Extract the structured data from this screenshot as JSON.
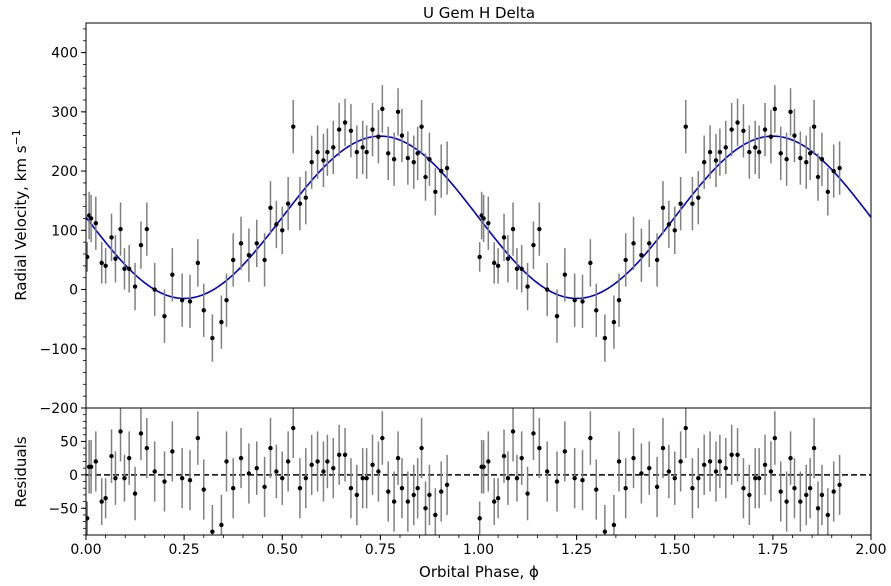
{
  "chart_data": [
    {
      "panel": "main",
      "type": "scatter",
      "title": "U Gem H Delta",
      "xlabel": "",
      "ylabel": "Radial Velocity, km s",
      "ylabel_exponent": "−1",
      "xlim": [
        0.0,
        2.0
      ],
      "ylim": [
        -200,
        450
      ],
      "yticks": [
        -200,
        -100,
        0,
        100,
        200,
        300,
        400
      ],
      "ytick_labels": [
        "−200",
        "−100",
        "0",
        "100",
        "200",
        "300",
        "400"
      ],
      "grid": false,
      "colors": {
        "points": "#000000",
        "errorbars": "#808080",
        "model": "#0000cc"
      },
      "model": {
        "type": "line",
        "description_visible": false,
        "gamma": 122,
        "amplitude": 137,
        "equation_form": "v = gamma - K sin(2*pi*phi)"
      },
      "x": [
        0.003,
        0.008,
        0.013,
        0.025,
        0.04,
        0.05,
        0.065,
        0.075,
        0.088,
        0.098,
        0.11,
        0.125,
        0.14,
        0.155,
        0.175,
        0.2,
        0.22,
        0.245,
        0.265,
        0.285,
        0.3,
        0.322,
        0.345,
        0.358,
        0.375,
        0.395,
        0.415,
        0.435,
        0.455,
        0.47,
        0.485,
        0.5,
        0.515,
        0.528,
        0.545,
        0.56,
        0.575,
        0.59,
        0.605,
        0.615,
        0.63,
        0.645,
        0.66,
        0.675,
        0.69,
        0.705,
        0.715,
        0.73,
        0.745,
        0.755,
        0.77,
        0.785,
        0.795,
        0.805,
        0.82,
        0.835,
        0.845,
        0.855,
        0.865,
        0.875,
        0.89,
        0.905,
        0.92
      ],
      "y": [
        55,
        125,
        120,
        112,
        45,
        40,
        88,
        52,
        102,
        35,
        35,
        5,
        75,
        102,
        0,
        -45,
        25,
        -18,
        -20,
        45,
        -35,
        -82,
        -55,
        -18,
        50,
        78,
        58,
        78,
        50,
        138,
        110,
        100,
        145,
        275,
        145,
        155,
        215,
        232,
        218,
        232,
        240,
        270,
        282,
        268,
        232,
        240,
        232,
        270,
        258,
        305,
        230,
        220,
        300,
        260,
        222,
        215,
        230,
        275,
        190,
        220,
        165,
        200,
        205
      ],
      "errors": [
        25,
        40,
        40,
        45,
        35,
        30,
        40,
        40,
        45,
        35,
        40,
        40,
        40,
        45,
        45,
        45,
        45,
        45,
        45,
        40,
        45,
        40,
        45,
        45,
        45,
        45,
        45,
        40,
        45,
        45,
        40,
        40,
        45,
        45,
        45,
        45,
        45,
        45,
        45,
        40,
        45,
        45,
        40,
        45,
        45,
        45,
        45,
        45,
        45,
        40,
        45,
        45,
        40,
        45,
        45,
        45,
        45,
        45,
        40,
        45,
        40,
        45,
        45
      ],
      "repeat_offset": 1.0
    },
    {
      "panel": "residuals",
      "type": "scatter",
      "title": "",
      "xlabel": "Orbital Phase, ϕ",
      "ylabel": "Residuals",
      "xlim": [
        0.0,
        2.0
      ],
      "ylim": [
        -90,
        100
      ],
      "xticks": [
        0.0,
        0.25,
        0.5,
        0.75,
        1.0,
        1.25,
        1.5,
        1.75,
        2.0
      ],
      "xtick_labels": [
        "0.00",
        "0.25",
        "0.50",
        "0.75",
        "1.00",
        "1.25",
        "1.50",
        "1.75",
        "2.00"
      ],
      "yticks": [
        -50,
        0,
        50
      ],
      "ytick_labels": [
        "−50",
        "0",
        "50"
      ],
      "zero_line": "dashed",
      "colors": {
        "points": "#000000",
        "errorbars": "#808080",
        "zero_line": "#000000"
      },
      "x": [
        0.003,
        0.008,
        0.013,
        0.025,
        0.04,
        0.05,
        0.065,
        0.075,
        0.088,
        0.098,
        0.11,
        0.125,
        0.14,
        0.155,
        0.175,
        0.2,
        0.22,
        0.245,
        0.265,
        0.285,
        0.3,
        0.322,
        0.345,
        0.358,
        0.375,
        0.395,
        0.415,
        0.435,
        0.455,
        0.47,
        0.485,
        0.5,
        0.515,
        0.528,
        0.545,
        0.56,
        0.575,
        0.59,
        0.605,
        0.615,
        0.63,
        0.645,
        0.66,
        0.675,
        0.69,
        0.705,
        0.715,
        0.73,
        0.745,
        0.755,
        0.77,
        0.785,
        0.795,
        0.805,
        0.82,
        0.835,
        0.845,
        0.855,
        0.865,
        0.875,
        0.89,
        0.905,
        0.92
      ],
      "y": [
        -65,
        12,
        12,
        20,
        -40,
        -35,
        28,
        -5,
        65,
        -5,
        25,
        -28,
        62,
        40,
        5,
        -10,
        35,
        -5,
        -8,
        55,
        -22,
        -85,
        -75,
        20,
        -20,
        25,
        2,
        10,
        -18,
        40,
        5,
        -5,
        20,
        70,
        -20,
        -5,
        15,
        20,
        5,
        20,
        10,
        30,
        30,
        -20,
        -30,
        -5,
        -5,
        15,
        5,
        55,
        -25,
        -40,
        25,
        -20,
        -40,
        -30,
        -20,
        40,
        -50,
        -30,
        -60,
        -25,
        -15
      ],
      "errors": [
        25,
        40,
        40,
        45,
        35,
        30,
        40,
        40,
        45,
        35,
        40,
        40,
        40,
        45,
        45,
        45,
        45,
        45,
        45,
        40,
        45,
        40,
        45,
        45,
        45,
        45,
        45,
        40,
        45,
        45,
        40,
        40,
        45,
        45,
        45,
        45,
        45,
        45,
        45,
        40,
        45,
        45,
        40,
        45,
        45,
        45,
        45,
        45,
        45,
        40,
        45,
        45,
        40,
        45,
        45,
        45,
        45,
        45,
        40,
        45,
        40,
        45,
        45
      ],
      "repeat_offset": 1.0
    }
  ]
}
